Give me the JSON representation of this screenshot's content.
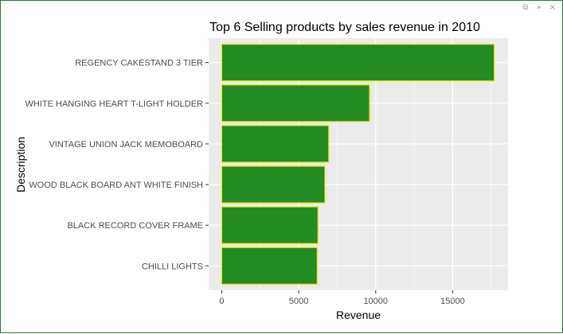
{
  "window": {
    "controls": [
      {
        "name": "popout-icon",
        "glyph": "⧉"
      },
      {
        "name": "collapse-icon",
        "glyph": "»"
      },
      {
        "name": "close-icon",
        "glyph": "×"
      }
    ]
  },
  "chart_data": {
    "type": "bar",
    "orientation": "horizontal",
    "title": "Top 6 Selling products by sales revenue in 2010",
    "xlabel": "Revenue",
    "ylabel": "Description",
    "categories": [
      "REGENCY CAKESTAND 3 TIER",
      "WHITE HANGING HEART T-LIGHT HOLDER",
      "VINTAGE UNION JACK MEMOBOARD",
      "WOOD BLACK BOARD ANT WHITE FINISH",
      "BLACK RECORD COVER FRAME",
      "CHILLI LIGHTS"
    ],
    "values": [
      17700,
      9600,
      6950,
      6700,
      6250,
      6200
    ],
    "xlim": [
      -850,
      18600
    ],
    "xticks": [
      0,
      5000,
      10000,
      15000
    ],
    "xtick_labels": [
      "0",
      "5000",
      "10000",
      "15000"
    ],
    "grid": true,
    "bar_fill": "#228b22",
    "bar_outline": "#e5e000",
    "panel_background": "#ebebeb",
    "gridline_color": "#ffffff"
  }
}
